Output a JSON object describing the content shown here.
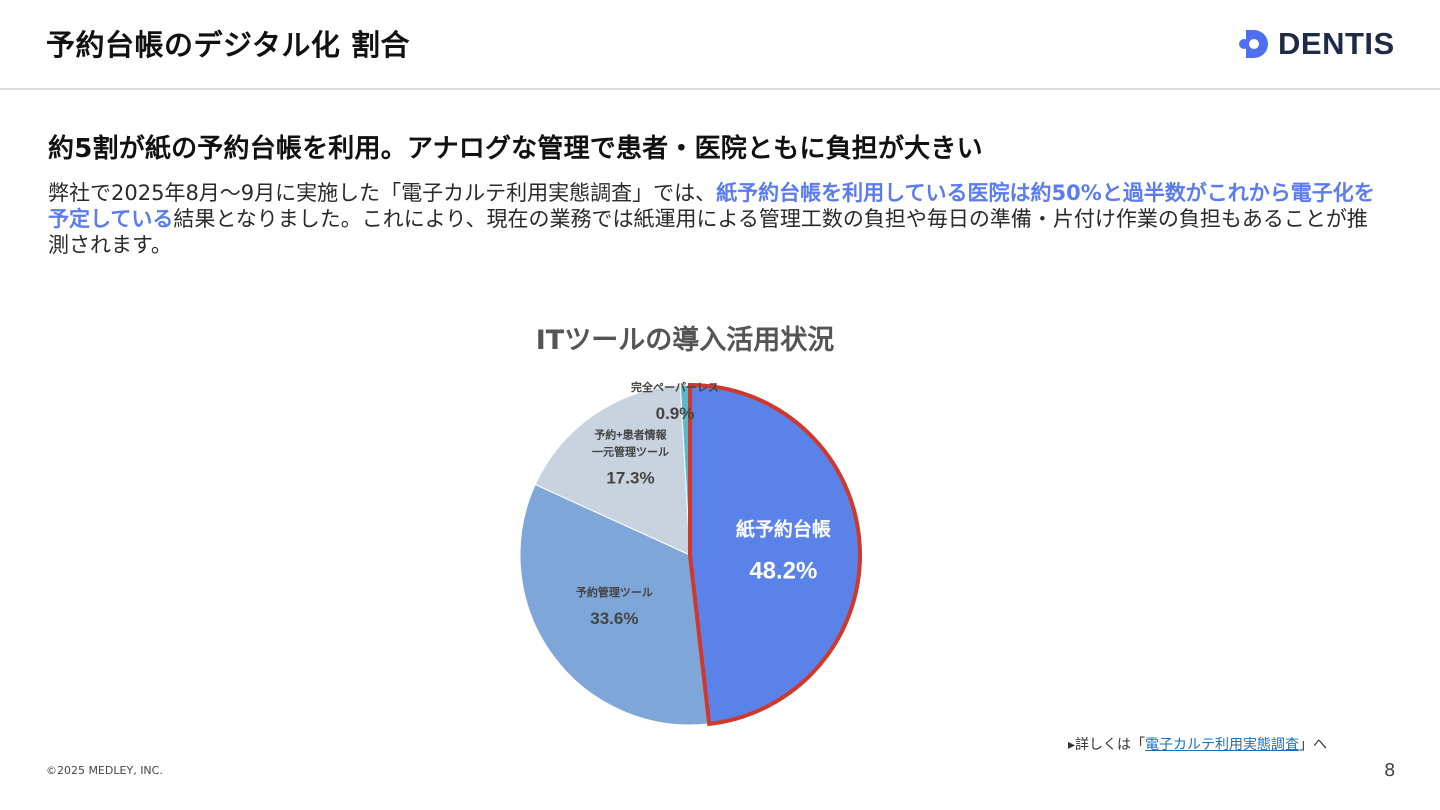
{
  "header": {
    "title": "予約台帳のデジタル化 割合",
    "logo_text": "DENTIS"
  },
  "headline": "約5割が紙の予約台帳を利用。アナログな管理で患者・医院ともに負担が大きい",
  "body": {
    "part1": "弊社で2025年8月～9月に実施した「電子カルテ利用実態調査」では、",
    "highlight": "紙予約台帳を利用している医院は約50%と過半数がこれから電子化を予定している",
    "part2": "結果となりました。これにより、現在の業務では紙運用による管理工数の負担や毎日の準備・片付け作業の負担もあることが推測されます。"
  },
  "chart_data": {
    "type": "pie",
    "title": "ITツールの導入活用状況",
    "slices": [
      {
        "label": "紙予約台帳",
        "value": 48.2,
        "display": "48.2%",
        "color": "#5a82e8",
        "highlighted": true
      },
      {
        "label": "予約管理ツール",
        "value": 33.6,
        "display": "33.6%",
        "color": "#7ea6d8"
      },
      {
        "label": "予約+患者情報\n一元管理ツール",
        "value": 17.3,
        "display": "17.3%",
        "color": "#c9d3e0"
      },
      {
        "label": "完全ペーパーレス",
        "value": 0.9,
        "display": "0.9%",
        "color": "#5cb8c8"
      }
    ],
    "highlight_border_color": "#d0382c"
  },
  "footer": {
    "source_prefix": "▸詳しくは「",
    "source_link": "電子カルテ利用実態調査",
    "source_suffix": "」へ",
    "copyright": "©2025 MEDLEY, INC.",
    "page_number": "8"
  },
  "colors": {
    "accent": "#5b7cf0",
    "logo_mark": "#4f6ff0"
  }
}
